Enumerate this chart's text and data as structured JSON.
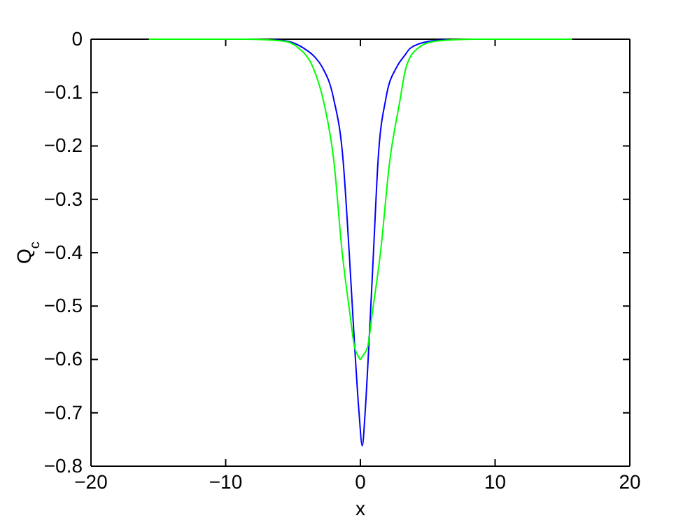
{
  "chart_data": {
    "type": "line",
    "xlabel": "x",
    "ylabel": "Q$_{c}$",
    "xlim": [
      -20,
      20
    ],
    "ylim": [
      -0.8,
      0
    ],
    "xticks": [
      -20,
      -10,
      0,
      10,
      20
    ],
    "yticks": [
      -0.8,
      -0.7,
      -0.6,
      -0.5,
      -0.4,
      -0.3,
      -0.2,
      -0.1,
      0
    ],
    "grid": false,
    "series": [
      {
        "color": "#0000ff",
        "x": [
          -6.5,
          -5.4,
          -4.2,
          -3.4,
          -2.84,
          -2.0,
          -1.28,
          -0.83,
          -0.42,
          -0.1,
          0.14,
          0.35,
          0.62,
          0.97,
          1.31,
          1.9,
          2.7,
          3.3,
          3.7,
          5.1,
          6.5
        ],
        "values": [
          -0.001,
          -0.004,
          -0.017,
          -0.033,
          -0.052,
          -0.11,
          -0.228,
          -0.4,
          -0.578,
          -0.7,
          -0.762,
          -0.7,
          -0.578,
          -0.4,
          -0.228,
          -0.11,
          -0.052,
          -0.03,
          -0.017,
          -0.004,
          -0.001
        ]
      },
      {
        "color": "#00ff00",
        "x": [
          -15.7,
          -8.5,
          -7,
          -5.6,
          -4.57,
          -3.53,
          -2.7,
          -1.97,
          -1.35,
          -0.8,
          -0.42,
          -0.15,
          0,
          0.15,
          0.52,
          0.9,
          1.49,
          2.18,
          2.9,
          3.4,
          4.26,
          5.5,
          7,
          8.5,
          15.7
        ],
        "values": [
          0,
          0,
          -0.001,
          -0.004,
          -0.017,
          -0.052,
          -0.12,
          -0.228,
          -0.4,
          -0.51,
          -0.578,
          -0.594,
          -0.6,
          -0.594,
          -0.578,
          -0.51,
          -0.4,
          -0.228,
          -0.12,
          -0.052,
          -0.017,
          -0.004,
          -0.001,
          0,
          0
        ]
      }
    ]
  }
}
